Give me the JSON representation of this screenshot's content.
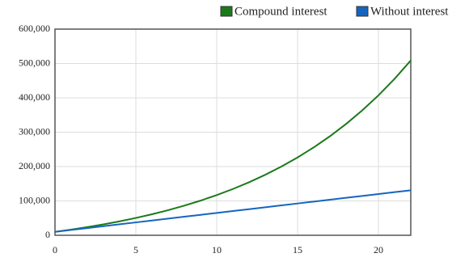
{
  "chart_data": {
    "type": "line",
    "x": [
      0,
      1,
      2,
      3,
      4,
      5,
      6,
      7,
      8,
      9,
      10,
      11,
      12,
      13,
      14,
      15,
      16,
      17,
      18,
      19,
      20,
      21,
      22
    ],
    "series": [
      {
        "name": "Compound interest",
        "color": "#1a7a1a",
        "values": [
          10000,
          16550,
          23788,
          31786,
          40624,
          50390,
          61181,
          73105,
          86281,
          100841,
          116929,
          134707,
          154351,
          176058,
          200044,
          226549,
          255837,
          288200,
          323961,
          363477,
          407142,
          455392,
          508708
        ]
      },
      {
        "name": "Without interest",
        "color": "#1565c0",
        "values": [
          10000,
          15500,
          21000,
          26500,
          32000,
          37500,
          43000,
          48500,
          54000,
          59500,
          65000,
          70500,
          76000,
          81500,
          87000,
          92500,
          98000,
          103500,
          109000,
          114500,
          120000,
          125500,
          131000
        ]
      }
    ],
    "xlim": [
      0,
      22
    ],
    "ylim": [
      0,
      600000
    ],
    "xticks": [
      0,
      5,
      10,
      15,
      20
    ],
    "yticks": [
      0,
      {
        "value": 100000,
        "label": "100,000"
      },
      {
        "value": 200000,
        "label": "200,000"
      },
      {
        "value": 300000,
        "label": "300,000"
      },
      {
        "value": 400000,
        "label": "400,000"
      },
      {
        "value": 500000,
        "label": "500,000"
      },
      {
        "value": 600000,
        "label": "600,000"
      }
    ],
    "grid": true,
    "legend": "top-right"
  }
}
